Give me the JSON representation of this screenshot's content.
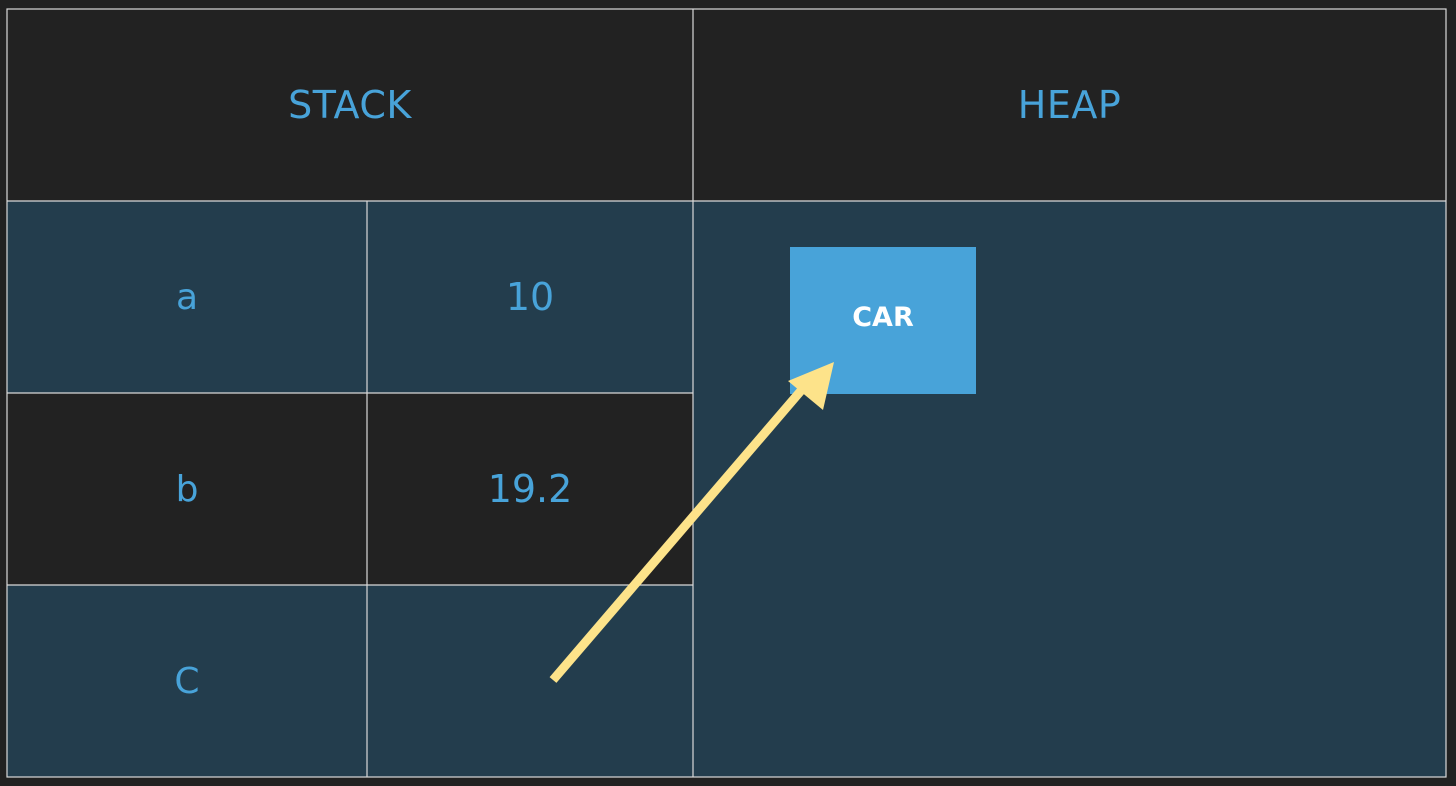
{
  "headers": {
    "stack": "STACK",
    "heap": "HEAP"
  },
  "stack_rows": [
    {
      "name": "a",
      "value": "10"
    },
    {
      "name": "b",
      "value": "19.2"
    },
    {
      "name": "C",
      "value": ""
    }
  ],
  "heap_objects": [
    {
      "label": "CAR"
    }
  ],
  "colors": {
    "background": "#212121",
    "header_fill": "#222222",
    "stack_blue_fill": "#233d4d",
    "text_blue": "#48a3d9",
    "heap_object_fill": "#48a3d9",
    "arrow": "#fde38a",
    "grid_lines": "#d9d9d9"
  }
}
